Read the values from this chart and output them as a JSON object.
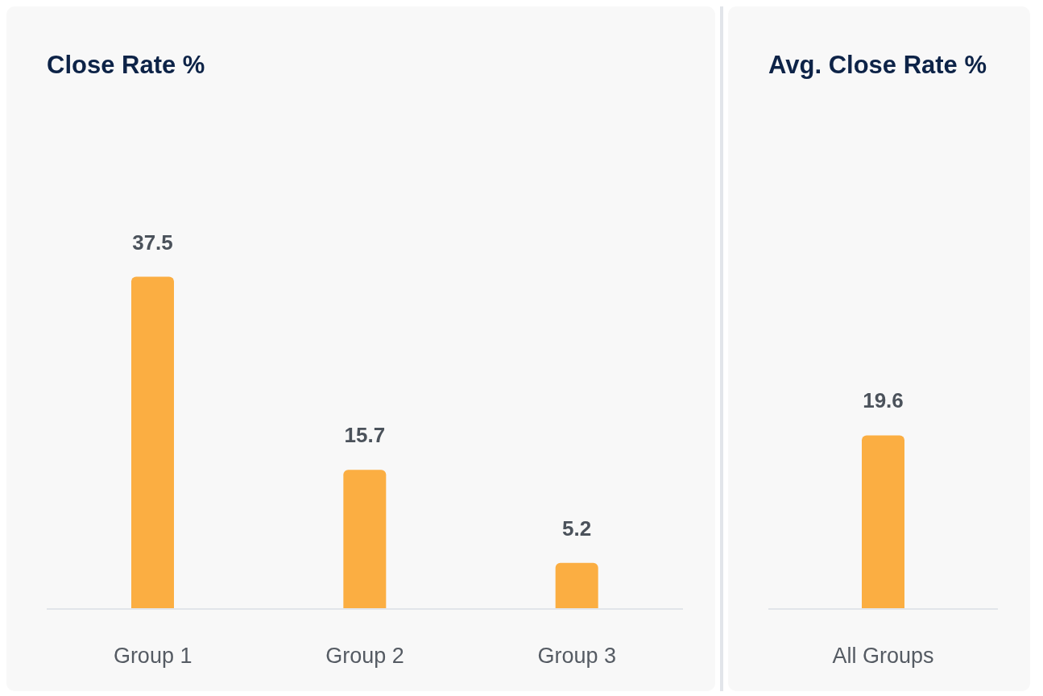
{
  "chart_data": [
    {
      "type": "bar",
      "title": "Close Rate %",
      "categories": [
        "Group 1",
        "Group 2",
        "Group 3"
      ],
      "values": [
        37.5,
        15.7,
        5.2
      ],
      "color": "#fbae42",
      "data_labels": true,
      "tick_labels": "x",
      "grid": false,
      "legend": false
    },
    {
      "type": "bar",
      "title": "Avg. Close Rate %",
      "categories": [
        "All Groups"
      ],
      "values": [
        19.6
      ],
      "color": "#fbae42",
      "data_labels": true,
      "tick_labels": "x",
      "grid": false,
      "legend": false
    }
  ]
}
